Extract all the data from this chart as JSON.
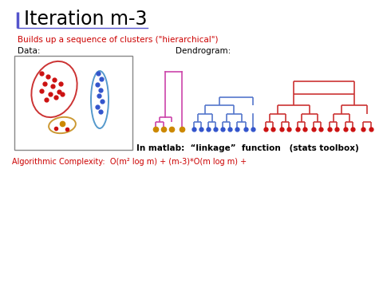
{
  "title": "Iteration m-3",
  "title_color": "#000000",
  "title_bar_color": "#5555cc",
  "subtitle": "Builds up a sequence of clusters (\"hierarchical\")",
  "subtitle_color": "#cc0000",
  "data_label": "Data:",
  "dendro_label": "Dendrogram:",
  "matlab_text": "In matlab:  “linkage”  function   (stats toolbox)",
  "complexity_text": "Algorithmic Complexity:  O(m² log m) + (m-3)*O(m log m) +",
  "complexity_color": "#cc0000",
  "bg_color": "#ffffff",
  "red_dot_color": "#cc1111",
  "blue_dot_color": "#3355cc",
  "orange_dot_color": "#cc8800",
  "red_ellipse_color": "#cc3333",
  "blue_ellipse_color": "#5599cc",
  "orange_ellipse_color": "#cc9933",
  "box_color": "#888888",
  "dendro_magenta": "#cc44aa",
  "dendro_blue": "#5577cc",
  "dendro_red": "#cc3333"
}
